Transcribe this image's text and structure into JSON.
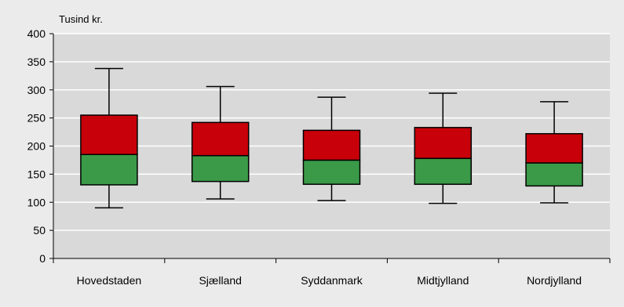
{
  "chart_data": {
    "type": "boxplot",
    "unit_label": "Tusind kr.",
    "categories": [
      "Hovedstaden",
      "Sjælland",
      "Syddanmark",
      "Midtjylland",
      "Nordjylland"
    ],
    "boxes": [
      {
        "min": 90,
        "q1": 131,
        "median": 185,
        "q3": 255,
        "max": 338
      },
      {
        "min": 106,
        "q1": 137,
        "median": 183,
        "q3": 242,
        "max": 306
      },
      {
        "min": 103,
        "q1": 132,
        "median": 175,
        "q3": 228,
        "max": 287
      },
      {
        "min": 98,
        "q1": 132,
        "median": 178,
        "q3": 233,
        "max": 294
      },
      {
        "min": 99,
        "q1": 129,
        "median": 170,
        "q3": 222,
        "max": 279
      }
    ],
    "yticks": [
      0,
      50,
      100,
      150,
      200,
      250,
      300,
      350,
      400
    ],
    "ylim": [
      0,
      400
    ],
    "grid": true,
    "colors": {
      "lower_box": "#3a9a48",
      "upper_box": "#c8000a",
      "plot_bg": "#d9d9d9",
      "page_bg": "#ebebeb",
      "gridline": "#ffffff"
    }
  }
}
